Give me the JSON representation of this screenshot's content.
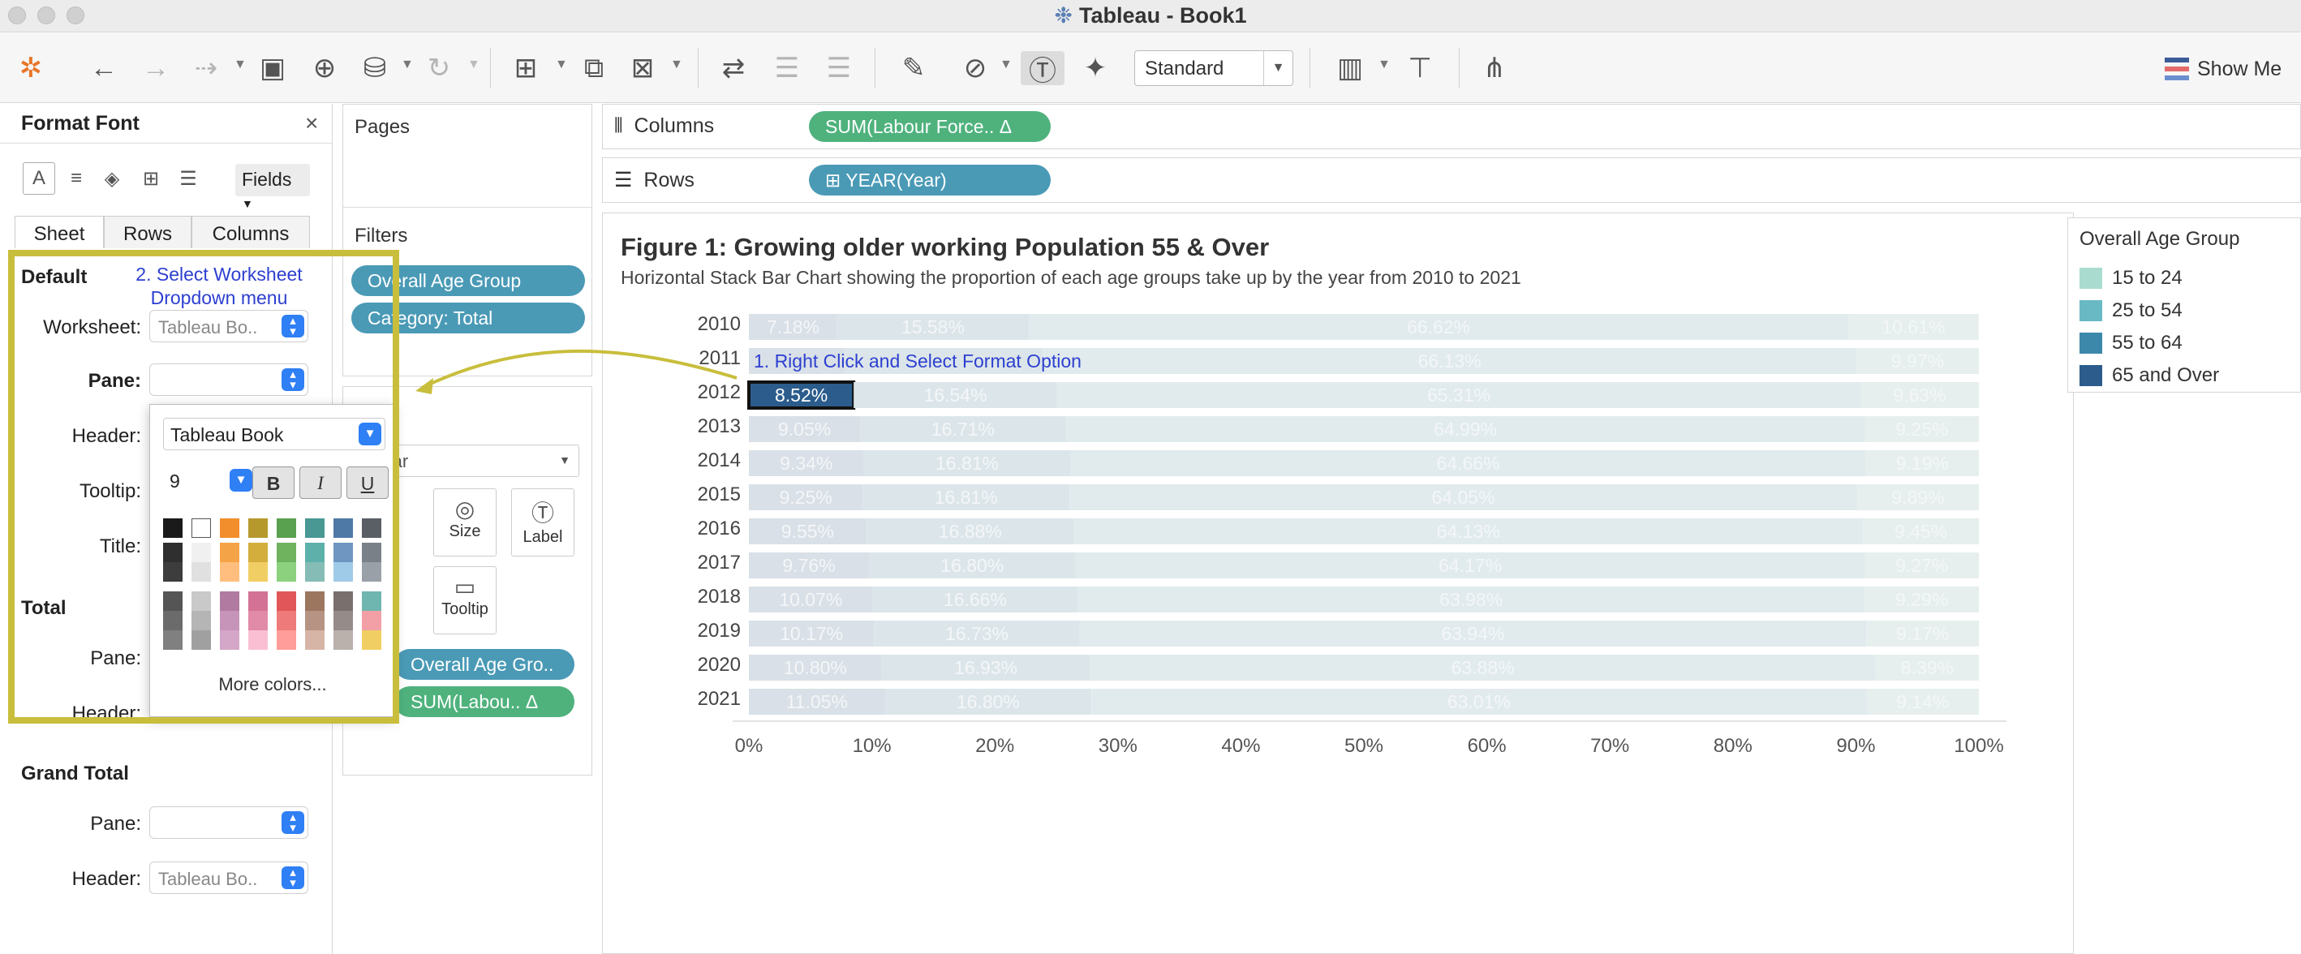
{
  "window": {
    "title": "Tableau - Book1",
    "logo": "tableau-logo-icon"
  },
  "toolbar": {
    "standard_label": "Standard",
    "show_me_label": "Show Me",
    "icons": [
      "tableau-logo-icon",
      "undo-icon",
      "redo-icon",
      "replay-icon",
      "save-icon",
      "new-datasource-icon",
      "pause-update-icon",
      "refresh-icon",
      "new-worksheet-icon",
      "duplicate-icon",
      "clear-icon",
      "swap-icon",
      "sort-ascending-icon",
      "sort-descending-icon",
      "highlight-icon",
      "group-icon",
      "label-icon",
      "pin-icon",
      "fit-icon",
      "presentation-icon",
      "share-icon"
    ]
  },
  "format_panel": {
    "title": "Format Font",
    "fields_label": "Fields",
    "tabs": [
      "Sheet",
      "Rows",
      "Columns"
    ],
    "sections": {
      "default_title": "Default",
      "worksheet_label": "Worksheet:",
      "worksheet_value": "Tableau Bo..",
      "pane_label": "Pane:",
      "header_label": "Header:",
      "tooltip_label": "Tooltip:",
      "title_label": "Title:",
      "total_title": "Total",
      "total_pane_label": "Pane:",
      "total_header_label": "Header:",
      "grand_total_title": "Grand Total",
      "grand_pane_label": "Pane:",
      "grand_header_label": "Header:",
      "grand_header_value": "Tableau Bo.."
    }
  },
  "font_popup": {
    "font_name": "Tableau Book",
    "font_size": "9",
    "bold": "B",
    "italic": "I",
    "underline": "U",
    "more_colors": "More colors...",
    "swatch_columns": [
      [
        "#1a1a1a",
        "#2f2f2f",
        "#3d3d3d",
        "#555555",
        "#6b6b6b",
        "#808080"
      ],
      [
        "#ffffff",
        "#f0f0f0",
        "#e0e0e0",
        "#c9c9c9",
        "#b5b5b5",
        "#a0a0a0"
      ],
      [
        "#f28e2b",
        "#f5a347",
        "#ffbe7d",
        "#b07aa1",
        "#c794b9",
        "#d4a6c8"
      ],
      [
        "#b6992d",
        "#d3ae3c",
        "#f1ce63",
        "#d37295",
        "#e28ba8",
        "#fabfd2"
      ],
      [
        "#59a14f",
        "#6fb35f",
        "#8cd17d",
        "#e15759",
        "#ee7a7a",
        "#ff9d9a"
      ],
      [
        "#499894",
        "#5eb0ab",
        "#86bcb6",
        "#9d7660",
        "#b69382",
        "#d7b5a6"
      ],
      [
        "#4e79a7",
        "#6f96c0",
        "#a0cbe8",
        "#79706e",
        "#958c8a",
        "#bab0ac"
      ],
      [
        "#5a5f66",
        "#7a8088",
        "#9aa0a8",
        "#6fb6b0",
        "#f2a0a6",
        "#f1ce63"
      ]
    ]
  },
  "pages": {
    "title": "Pages"
  },
  "filters": {
    "title": "Filters",
    "pills": [
      "Overall Age Group",
      "Category: Total"
    ]
  },
  "marks": {
    "type_value": "Bar",
    "buttons": {
      "size": "Size",
      "label": "Label",
      "tooltip": "Tooltip"
    },
    "pills": [
      "Overall Age Gro..",
      "SUM(Labou.. Δ"
    ]
  },
  "shelves": {
    "columns_label": "Columns",
    "columns_pill": "SUM(Labour Force.. Δ",
    "rows_label": "Rows",
    "rows_pill": "⊞ YEAR(Year)"
  },
  "annotations": {
    "step1": "1. Right Click and Select Format Option",
    "step2": "2. Select Worksheet Dropdown menu"
  },
  "legend": {
    "title": "Overall Age Group",
    "items": [
      {
        "label": "15 to 24",
        "color": "#a9dccf"
      },
      {
        "label": "25 to 54",
        "color": "#69b9c4"
      },
      {
        "label": "55 to 64",
        "color": "#3c88ab"
      },
      {
        "label": "65 and Over",
        "color": "#2b5c8c"
      }
    ]
  },
  "chart_data": {
    "type": "bar",
    "orientation": "horizontal-stacked",
    "title": "Figure 1: Growing older working Population 55 & Over",
    "subtitle": "Horizontal Stack Bar Chart showing the proportion of each age groups take up by the year from 2010 to 2021",
    "categories": [
      "2010",
      "2011",
      "2012",
      "2013",
      "2014",
      "2015",
      "2016",
      "2017",
      "2018",
      "2019",
      "2020",
      "2021"
    ],
    "xlim": [
      0,
      100
    ],
    "x_ticks": [
      "0%",
      "10%",
      "20%",
      "30%",
      "40%",
      "50%",
      "60%",
      "70%",
      "80%",
      "90%",
      "100%"
    ],
    "series": [
      {
        "name": "65 and Over",
        "values": [
          7.18,
          7.8,
          8.52,
          9.05,
          9.34,
          9.25,
          9.55,
          9.76,
          10.07,
          10.17,
          10.8,
          11.05
        ],
        "labels": [
          "7.18%",
          "",
          "8.52%",
          "9.05%",
          "9.34%",
          "9.25%",
          "9.55%",
          "9.76%",
          "10.07%",
          "10.17%",
          "10.80%",
          "11.05%"
        ]
      },
      {
        "name": "55 to 64",
        "values": [
          15.58,
          16.1,
          16.54,
          16.71,
          16.81,
          16.81,
          16.88,
          16.8,
          16.66,
          16.73,
          16.93,
          16.8
        ],
        "labels": [
          "15.58%",
          "",
          "16.54%",
          "16.71%",
          "16.81%",
          "16.81%",
          "16.88%",
          "16.80%",
          "16.66%",
          "16.73%",
          "16.93%",
          "16.80%"
        ]
      },
      {
        "name": "25 to 54",
        "values": [
          66.62,
          66.13,
          65.31,
          64.99,
          64.66,
          64.05,
          64.13,
          64.17,
          63.98,
          63.94,
          63.88,
          63.01
        ],
        "labels": [
          "66.62%",
          "66.13%",
          "65.31%",
          "64.99%",
          "64.66%",
          "64.05%",
          "64.13%",
          "64.17%",
          "63.98%",
          "63.94%",
          "63.88%",
          "63.01%"
        ]
      },
      {
        "name": "15 to 24",
        "values": [
          10.61,
          9.97,
          9.63,
          9.25,
          9.19,
          9.89,
          9.45,
          9.27,
          9.29,
          9.17,
          8.39,
          9.14
        ],
        "labels": [
          "10.61%",
          "9.97%",
          "9.63%",
          "9.25%",
          "9.19%",
          "9.89%",
          "9.45%",
          "9.27%",
          "9.29%",
          "9.17%",
          "8.39%",
          "9.14%"
        ]
      }
    ],
    "selected": {
      "category": "2012",
      "series": "65 and Over"
    },
    "grid": false
  }
}
